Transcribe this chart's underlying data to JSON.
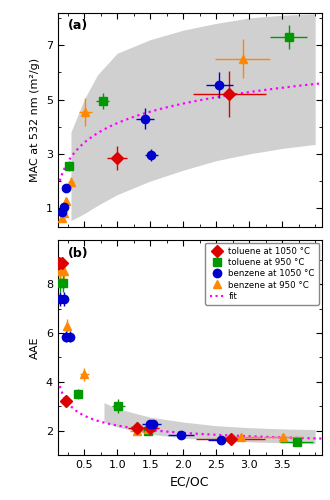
{
  "panel_a": {
    "title": "(a)",
    "ylabel": "MAC at 532 nm (m²/g)",
    "ylim": [
      0.3,
      8.2
    ],
    "yticks": [
      1,
      3,
      5,
      7
    ],
    "xlim": [
      0.1,
      4.1
    ],
    "xticks": [
      0.5,
      1.0,
      1.5,
      2.0,
      2.5,
      3.0,
      3.5
    ],
    "data": {
      "toluene_1050": {
        "x": [
          1.0,
          2.7
        ],
        "y": [
          2.85,
          5.2
        ],
        "xerr": [
          0.15,
          0.55
        ],
        "yerr": [
          0.45,
          0.85
        ],
        "color": "#dd0000",
        "marker": "D",
        "ms": 6
      },
      "toluene_950": {
        "x": [
          0.27,
          0.78,
          3.6
        ],
        "y": [
          2.55,
          4.95,
          7.3
        ],
        "xerr": [
          0.04,
          0.1,
          0.28
        ],
        "yerr": [
          0.18,
          0.3,
          0.45
        ],
        "color": "#009900",
        "marker": "s",
        "ms": 6
      },
      "benzene_1050": {
        "x": [
          0.17,
          0.2,
          0.23,
          1.42,
          1.52,
          2.55
        ],
        "y": [
          0.85,
          1.05,
          1.75,
          4.3,
          2.95,
          5.55
        ],
        "xerr": [
          0.015,
          0.015,
          0.015,
          0.14,
          0.1,
          0.2
        ],
        "yerr": [
          0.08,
          0.09,
          0.15,
          0.38,
          0.22,
          0.48
        ],
        "color": "#0000cc",
        "marker": "o",
        "ms": 6
      },
      "benzene_950": {
        "x": [
          0.16,
          0.2,
          0.23,
          0.3,
          0.52,
          2.9
        ],
        "y": [
          0.65,
          0.82,
          1.25,
          1.95,
          4.55,
          6.5
        ],
        "xerr": [
          0.015,
          0.015,
          0.015,
          0.04,
          0.1,
          0.42
        ],
        "yerr": [
          0.06,
          0.07,
          0.12,
          0.2,
          0.52,
          0.72
        ],
        "color": "#ff8800",
        "marker": "^",
        "ms": 6
      }
    },
    "shade": {
      "x": [
        0.3,
        0.5,
        0.7,
        1.0,
        1.5,
        2.0,
        2.5,
        3.0,
        3.5,
        4.0
      ],
      "upper": [
        3.8,
        5.0,
        5.9,
        6.7,
        7.2,
        7.55,
        7.8,
        8.0,
        8.1,
        8.15
      ],
      "lower": [
        0.55,
        0.8,
        1.1,
        1.5,
        2.0,
        2.4,
        2.75,
        3.0,
        3.2,
        3.35
      ]
    },
    "fit": {
      "a": 1.04,
      "b": 4.13
    }
  },
  "panel_b": {
    "title": "(b)",
    "ylabel": "AAE",
    "ylim": [
      1.0,
      9.8
    ],
    "yticks": [
      2,
      4,
      6,
      8
    ],
    "xlim": [
      0.1,
      4.1
    ],
    "xticks": [
      0.5,
      1.0,
      1.5,
      2.0,
      2.5,
      3.0,
      3.5
    ],
    "xlabel": "EC/OC",
    "data": {
      "toluene_1050": {
        "x": [
          0.12,
          0.16,
          0.22,
          1.3,
          1.5,
          2.72
        ],
        "y": [
          8.85,
          8.85,
          3.2,
          2.1,
          2.1,
          1.65
        ],
        "xerr": [
          0.01,
          0.015,
          0.025,
          0.14,
          0.14,
          0.52
        ],
        "yerr": [
          0.28,
          0.28,
          0.18,
          0.14,
          0.14,
          0.18
        ],
        "color": "#dd0000",
        "marker": "D",
        "ms": 6
      },
      "toluene_950": {
        "x": [
          0.13,
          0.18,
          0.4,
          1.02,
          1.47,
          3.72
        ],
        "y": [
          8.05,
          8.05,
          3.5,
          3.0,
          2.0,
          1.55
        ],
        "xerr": [
          0.01,
          0.015,
          0.055,
          0.1,
          0.1,
          0.25
        ],
        "yerr": [
          0.38,
          0.38,
          0.2,
          0.28,
          0.14,
          0.14
        ],
        "color": "#009900",
        "marker": "s",
        "ms": 6
      },
      "benzene_1050": {
        "x": [
          0.14,
          0.19,
          0.23,
          0.28,
          1.5,
          1.55,
          1.97,
          2.57
        ],
        "y": [
          7.4,
          7.4,
          5.85,
          5.85,
          2.25,
          2.25,
          1.8,
          1.6
        ],
        "xerr": [
          0.01,
          0.015,
          0.015,
          0.02,
          0.12,
          0.12,
          0.2,
          0.2
        ],
        "yerr": [
          0.28,
          0.28,
          0.22,
          0.22,
          0.12,
          0.12,
          0.1,
          0.1
        ],
        "color": "#0000cc",
        "marker": "o",
        "ms": 6
      },
      "benzene_950": {
        "x": [
          0.14,
          0.19,
          0.24,
          0.5,
          1.3,
          1.47,
          2.87,
          3.52
        ],
        "y": [
          8.55,
          8.55,
          6.3,
          4.3,
          2.0,
          2.05,
          1.75,
          1.75
        ],
        "xerr": [
          0.01,
          0.015,
          0.02,
          0.07,
          0.1,
          0.1,
          0.3,
          0.3
        ],
        "yerr": [
          0.33,
          0.33,
          0.28,
          0.28,
          0.12,
          0.12,
          0.1,
          0.1
        ],
        "color": "#ff8800",
        "marker": "^",
        "ms": 6
      }
    },
    "shade": {
      "x": [
        0.8,
        1.0,
        1.5,
        2.0,
        2.5,
        3.0,
        3.5,
        4.0
      ],
      "upper": [
        3.15,
        2.9,
        2.55,
        2.35,
        2.2,
        2.12,
        2.07,
        2.04
      ],
      "lower": [
        2.35,
        2.15,
        1.85,
        1.7,
        1.6,
        1.54,
        1.5,
        1.47
      ]
    },
    "fit": {
      "a": 1.21,
      "b": -0.4155,
      "c": 1.0
    }
  },
  "shade_color": "#c8c8c8",
  "fit_color": "#ff00ff",
  "legend": {
    "toluene_1050": "toluene at 1050 °C",
    "toluene_950": "toluene at 950 °C",
    "benzene_1050": "benzene at 1050 °C",
    "benzene_950": "benzene at 950 °C",
    "fit": "fit"
  }
}
